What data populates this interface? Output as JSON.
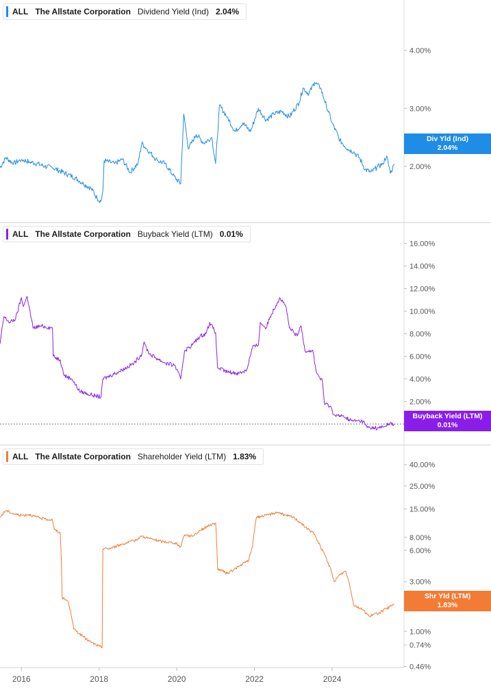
{
  "chart_data": [
    {
      "type": "line",
      "ticker": "ALL",
      "company": "The Allstate Corporation",
      "metric": "Dividend Yield (Ind)",
      "current_value": "2.04%",
      "tag_label": "Div Yld (Ind)",
      "tag_value": "2.04%",
      "color": "#1f8ce6",
      "scale": "linear",
      "ylim": [
        1.2,
        4.7
      ],
      "y_ticks": [
        {
          "value": 2.0,
          "label": "2.00%"
        },
        {
          "value": 3.0,
          "label": "3.00%"
        },
        {
          "value": 4.0,
          "label": "4.00%"
        }
      ],
      "points": [
        [
          2015.45,
          1.98
        ],
        [
          2015.6,
          2.15
        ],
        [
          2015.8,
          2.05
        ],
        [
          2016.0,
          2.12
        ],
        [
          2016.2,
          2.08
        ],
        [
          2016.4,
          2.05
        ],
        [
          2016.6,
          2.0
        ],
        [
          2016.8,
          1.98
        ],
        [
          2017.0,
          1.92
        ],
        [
          2017.2,
          1.86
        ],
        [
          2017.4,
          1.8
        ],
        [
          2017.6,
          1.7
        ],
        [
          2017.8,
          1.62
        ],
        [
          2017.95,
          1.45
        ],
        [
          2018.05,
          1.4
        ],
        [
          2018.1,
          1.58
        ],
        [
          2018.13,
          2.1
        ],
        [
          2018.4,
          2.05
        ],
        [
          2018.6,
          2.12
        ],
        [
          2018.8,
          1.9
        ],
        [
          2019.0,
          2.05
        ],
        [
          2019.1,
          2.4
        ],
        [
          2019.3,
          2.25
        ],
        [
          2019.5,
          2.1
        ],
        [
          2019.7,
          2.05
        ],
        [
          2019.9,
          1.85
        ],
        [
          2020.1,
          1.7
        ],
        [
          2020.18,
          2.9
        ],
        [
          2020.3,
          2.3
        ],
        [
          2020.5,
          2.55
        ],
        [
          2020.7,
          2.4
        ],
        [
          2020.9,
          2.5
        ],
        [
          2021.0,
          2.05
        ],
        [
          2021.1,
          3.05
        ],
        [
          2021.3,
          2.85
        ],
        [
          2021.5,
          2.6
        ],
        [
          2021.7,
          2.75
        ],
        [
          2021.9,
          2.6
        ],
        [
          2022.1,
          3.0
        ],
        [
          2022.3,
          2.8
        ],
        [
          2022.5,
          2.9
        ],
        [
          2022.7,
          2.95
        ],
        [
          2022.9,
          2.85
        ],
        [
          2023.0,
          2.95
        ],
        [
          2023.15,
          3.1
        ],
        [
          2023.25,
          3.35
        ],
        [
          2023.4,
          3.25
        ],
        [
          2023.55,
          3.45
        ],
        [
          2023.7,
          3.35
        ],
        [
          2023.85,
          3.05
        ],
        [
          2024.0,
          2.75
        ],
        [
          2024.2,
          2.45
        ],
        [
          2024.4,
          2.3
        ],
        [
          2024.55,
          2.25
        ],
        [
          2024.7,
          2.15
        ],
        [
          2024.85,
          1.95
        ],
        [
          2025.0,
          1.9
        ],
        [
          2025.15,
          1.98
        ],
        [
          2025.3,
          2.05
        ],
        [
          2025.4,
          2.18
        ],
        [
          2025.5,
          1.88
        ],
        [
          2025.6,
          2.04
        ]
      ]
    },
    {
      "type": "line",
      "ticker": "ALL",
      "company": "The Allstate Corporation",
      "metric": "Buyback Yield (LTM)",
      "current_value": "0.01%",
      "tag_label": "Buyback Yield (LTM)",
      "tag_value": "0.01%",
      "color": "#8a1ee8",
      "scale": "linear",
      "ylim": [
        -1,
        17
      ],
      "reference_line": 0.01,
      "y_ticks": [
        {
          "value": 2,
          "label": "2.00%"
        },
        {
          "value": 4,
          "label": "4.00%"
        },
        {
          "value": 6,
          "label": "6.00%"
        },
        {
          "value": 8,
          "label": "8.00%"
        },
        {
          "value": 10,
          "label": "10.00%"
        },
        {
          "value": 12,
          "label": "12.00%"
        },
        {
          "value": 14,
          "label": "14.00%"
        },
        {
          "value": 16,
          "label": "16.00%"
        }
      ],
      "points": [
        [
          2015.45,
          7.1
        ],
        [
          2015.55,
          9.5
        ],
        [
          2015.7,
          9.0
        ],
        [
          2015.85,
          9.3
        ],
        [
          2016.0,
          11.2
        ],
        [
          2016.05,
          10.4
        ],
        [
          2016.15,
          11.3
        ],
        [
          2016.3,
          8.5
        ],
        [
          2016.5,
          8.7
        ],
        [
          2016.8,
          8.5
        ],
        [
          2016.82,
          6.0
        ],
        [
          2017.0,
          5.7
        ],
        [
          2017.1,
          4.3
        ],
        [
          2017.3,
          4.0
        ],
        [
          2017.5,
          2.9
        ],
        [
          2017.7,
          2.7
        ],
        [
          2017.9,
          2.5
        ],
        [
          2018.05,
          2.4
        ],
        [
          2018.1,
          4.0
        ],
        [
          2018.3,
          4.3
        ],
        [
          2018.6,
          4.8
        ],
        [
          2018.9,
          5.4
        ],
        [
          2019.1,
          6.2
        ],
        [
          2019.15,
          7.2
        ],
        [
          2019.3,
          6.2
        ],
        [
          2019.5,
          5.8
        ],
        [
          2019.7,
          5.4
        ],
        [
          2019.95,
          5.2
        ],
        [
          2020.1,
          4.0
        ],
        [
          2020.2,
          6.5
        ],
        [
          2020.4,
          7.0
        ],
        [
          2020.6,
          7.8
        ],
        [
          2020.75,
          8.0
        ],
        [
          2020.85,
          9.0
        ],
        [
          2021.0,
          8.1
        ],
        [
          2021.05,
          5.0
        ],
        [
          2021.3,
          4.6
        ],
        [
          2021.6,
          4.5
        ],
        [
          2021.8,
          4.8
        ],
        [
          2021.95,
          6.8
        ],
        [
          2022.1,
          7.0
        ],
        [
          2022.15,
          9.0
        ],
        [
          2022.3,
          8.5
        ],
        [
          2022.4,
          9.5
        ],
        [
          2022.55,
          10.5
        ],
        [
          2022.65,
          11.2
        ],
        [
          2022.8,
          10.5
        ],
        [
          2022.9,
          8.5
        ],
        [
          2023.1,
          7.8
        ],
        [
          2023.2,
          8.7
        ],
        [
          2023.3,
          6.5
        ],
        [
          2023.5,
          6.5
        ],
        [
          2023.6,
          4.5
        ],
        [
          2023.75,
          3.8
        ],
        [
          2023.8,
          1.8
        ],
        [
          2023.95,
          1.6
        ],
        [
          2024.05,
          0.8
        ],
        [
          2024.3,
          0.65
        ],
        [
          2024.5,
          0.3
        ],
        [
          2024.8,
          0.25
        ],
        [
          2024.9,
          -0.3
        ],
        [
          2025.2,
          -0.35
        ],
        [
          2025.35,
          -0.2
        ],
        [
          2025.45,
          0.03
        ],
        [
          2025.6,
          0.01
        ]
      ]
    },
    {
      "type": "line",
      "ticker": "ALL",
      "company": "The Allstate Corporation",
      "metric": "Shareholder Yield (LTM)",
      "current_value": "1.83%",
      "tag_label": "Shr Yld (LTM)",
      "tag_value": "1.83%",
      "color": "#f27b35",
      "scale": "log",
      "ylim": [
        0.45,
        50
      ],
      "y_ticks": [
        {
          "value": 0.46,
          "label": "0.46%"
        },
        {
          "value": 0.74,
          "label": "0.74%"
        },
        {
          "value": 1.0,
          "label": "1.00%"
        },
        {
          "value": 3.0,
          "label": "3.00%"
        },
        {
          "value": 6.0,
          "label": "6.00%"
        },
        {
          "value": 8.0,
          "label": "8.00%"
        },
        {
          "value": 15.0,
          "label": "15.00%"
        },
        {
          "value": 25.0,
          "label": "25.00%"
        },
        {
          "value": 40.0,
          "label": "40.00%"
        }
      ],
      "points": [
        [
          2015.45,
          12.5
        ],
        [
          2015.6,
          14.5
        ],
        [
          2015.8,
          13.5
        ],
        [
          2016.0,
          13.0
        ],
        [
          2016.2,
          13.3
        ],
        [
          2016.4,
          12.5
        ],
        [
          2016.6,
          12.0
        ],
        [
          2016.8,
          11.8
        ],
        [
          2016.85,
          9.5
        ],
        [
          2017.0,
          8.8
        ],
        [
          2017.05,
          2.1
        ],
        [
          2017.2,
          1.95
        ],
        [
          2017.35,
          1.05
        ],
        [
          2017.6,
          0.88
        ],
        [
          2017.8,
          0.78
        ],
        [
          2018.0,
          0.72
        ],
        [
          2018.08,
          0.7
        ],
        [
          2018.1,
          6.2
        ],
        [
          2018.3,
          6.3
        ],
        [
          2018.6,
          6.9
        ],
        [
          2018.9,
          7.4
        ],
        [
          2019.1,
          8.2
        ],
        [
          2019.3,
          7.8
        ],
        [
          2019.6,
          7.3
        ],
        [
          2019.95,
          7.1
        ],
        [
          2020.1,
          6.5
        ],
        [
          2020.2,
          8.5
        ],
        [
          2020.4,
          8.2
        ],
        [
          2020.6,
          9.3
        ],
        [
          2020.85,
          10.5
        ],
        [
          2021.0,
          11.0
        ],
        [
          2021.05,
          4.0
        ],
        [
          2021.3,
          3.6
        ],
        [
          2021.6,
          4.2
        ],
        [
          2021.85,
          4.8
        ],
        [
          2021.95,
          6.5
        ],
        [
          2022.05,
          12.5
        ],
        [
          2022.3,
          13.0
        ],
        [
          2022.6,
          14.0
        ],
        [
          2022.8,
          13.0
        ],
        [
          2023.0,
          12.5
        ],
        [
          2023.2,
          11.0
        ],
        [
          2023.3,
          10.0
        ],
        [
          2023.5,
          9.0
        ],
        [
          2023.7,
          6.5
        ],
        [
          2023.9,
          4.5
        ],
        [
          2024.05,
          3.0
        ],
        [
          2024.2,
          3.5
        ],
        [
          2024.35,
          3.8
        ],
        [
          2024.55,
          1.8
        ],
        [
          2024.8,
          1.6
        ],
        [
          2024.95,
          1.4
        ],
        [
          2025.2,
          1.5
        ],
        [
          2025.4,
          1.65
        ],
        [
          2025.6,
          1.83
        ]
      ]
    }
  ],
  "x_axis": {
    "ticks": [
      {
        "value": 2016,
        "label": "2016"
      },
      {
        "value": 2018,
        "label": "2018"
      },
      {
        "value": 2020,
        "label": "2020"
      },
      {
        "value": 2022,
        "label": "2022"
      },
      {
        "value": 2024,
        "label": "2024"
      }
    ],
    "range": [
      2015.45,
      2025.85
    ]
  }
}
